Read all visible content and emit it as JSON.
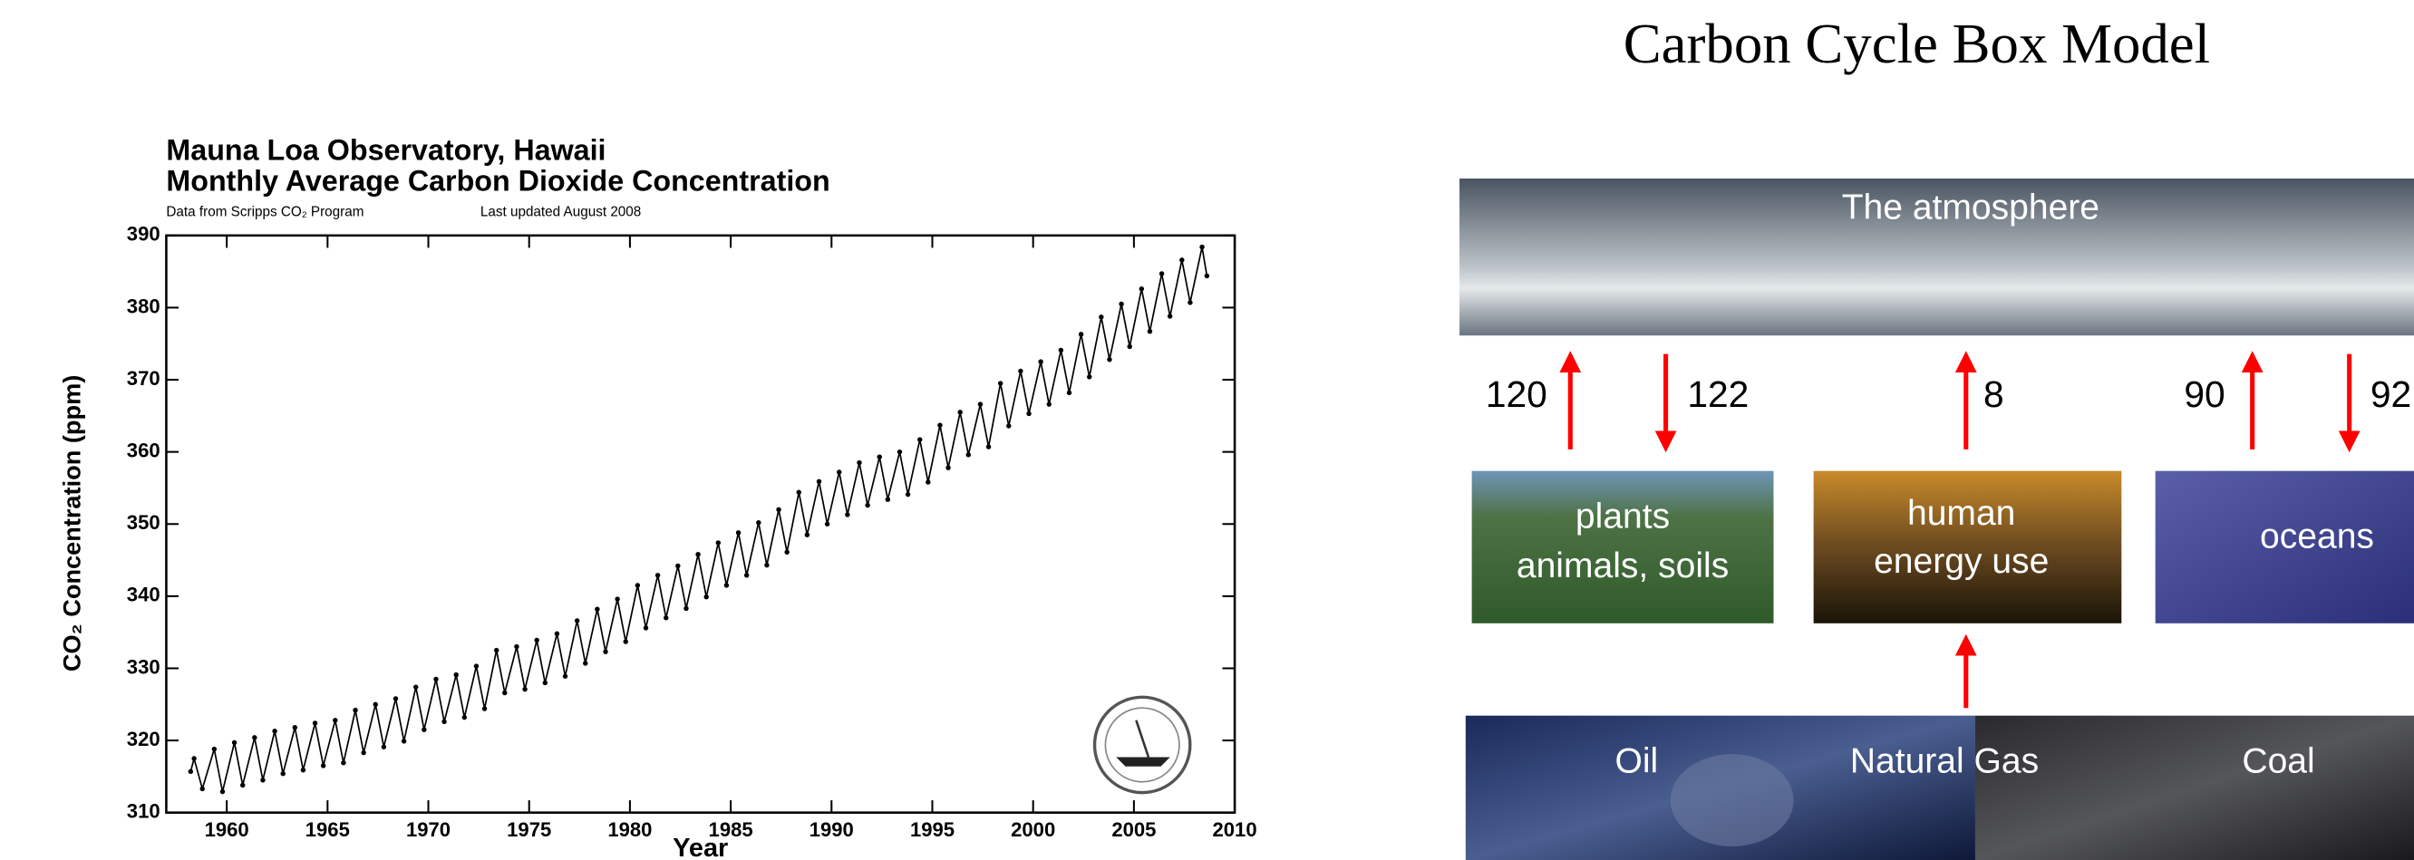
{
  "slide_title": "Carbon Cycle Box Model",
  "chart_data": {
    "type": "line",
    "title": "Mauna Loa Observatory, Hawaii",
    "subtitle": "Monthly Average Carbon Dioxide Concentration",
    "notes": [
      "Data from Scripps CO₂ Program",
      "Last updated August 2008"
    ],
    "x_label": "Year",
    "y_label": "CO₂ Concentration (ppm)",
    "xlim": [
      1957,
      2010
    ],
    "ylim": [
      310,
      390
    ],
    "xticks": [
      1960,
      1965,
      1970,
      1975,
      1980,
      1985,
      1990,
      1995,
      2000,
      2005,
      2010
    ],
    "yticks": [
      310,
      320,
      330,
      340,
      350,
      360,
      370,
      380,
      390
    ],
    "color": "#000000",
    "markers": true,
    "x": [
      1958.21,
      1958.38,
      1958.79,
      1959.38,
      1959.79,
      1960.38,
      1960.79,
      1961.38,
      1961.79,
      1962.38,
      1962.79,
      1963.38,
      1963.79,
      1964.38,
      1964.79,
      1965.38,
      1965.79,
      1966.38,
      1966.79,
      1967.38,
      1967.79,
      1968.38,
      1968.79,
      1969.38,
      1969.79,
      1970.38,
      1970.79,
      1971.38,
      1971.79,
      1972.38,
      1972.79,
      1973.38,
      1973.79,
      1974.38,
      1974.79,
      1975.38,
      1975.79,
      1976.38,
      1976.79,
      1977.38,
      1977.79,
      1978.38,
      1978.79,
      1979.38,
      1979.79,
      1980.38,
      1980.79,
      1981.38,
      1981.79,
      1982.38,
      1982.79,
      1983.38,
      1983.79,
      1984.38,
      1984.79,
      1985.38,
      1985.79,
      1986.38,
      1986.79,
      1987.38,
      1987.79,
      1988.38,
      1988.79,
      1989.38,
      1989.79,
      1990.38,
      1990.79,
      1991.38,
      1991.79,
      1992.38,
      1992.79,
      1993.38,
      1993.79,
      1994.38,
      1994.79,
      1995.38,
      1995.79,
      1996.38,
      1996.79,
      1997.38,
      1997.79,
      1998.38,
      1998.79,
      1999.38,
      1999.79,
      2000.38,
      2000.79,
      2001.38,
      2001.79,
      2002.38,
      2002.79,
      2003.38,
      2003.79,
      2004.38,
      2004.79,
      2005.38,
      2005.79,
      2006.38,
      2006.79,
      2007.38,
      2007.79,
      2008.38,
      2008.62
    ],
    "values": [
      315.7,
      317.5,
      313.3,
      318.8,
      312.9,
      319.7,
      313.8,
      320.4,
      314.5,
      321.3,
      315.4,
      321.8,
      315.9,
      322.4,
      316.5,
      322.8,
      316.9,
      324.2,
      318.3,
      325.0,
      319.1,
      325.8,
      319.9,
      327.4,
      321.5,
      328.5,
      322.6,
      329.1,
      323.2,
      330.3,
      324.4,
      332.5,
      326.6,
      333.0,
      327.1,
      333.9,
      328.0,
      334.8,
      328.9,
      336.6,
      330.7,
      338.2,
      332.3,
      339.6,
      333.7,
      341.5,
      335.6,
      342.9,
      337.0,
      344.2,
      338.3,
      345.8,
      339.9,
      347.4,
      341.5,
      348.8,
      342.9,
      350.2,
      344.3,
      352.0,
      346.1,
      354.4,
      348.5,
      355.9,
      350.0,
      357.2,
      351.3,
      358.5,
      352.6,
      359.3,
      353.4,
      360.0,
      354.1,
      361.7,
      355.8,
      363.7,
      357.8,
      365.5,
      359.6,
      366.6,
      360.7,
      369.5,
      363.6,
      371.2,
      365.3,
      372.5,
      366.6,
      374.1,
      368.2,
      376.3,
      370.4,
      378.7,
      372.8,
      380.5,
      374.6,
      382.6,
      376.7,
      384.7,
      378.8,
      386.6,
      380.7,
      388.4,
      384.4
    ]
  },
  "diagram": {
    "atmosphere": "The atmosphere",
    "fluxes": [
      120,
      122,
      8,
      90,
      92
    ],
    "reservoirs": [
      [
        "plants",
        "animals, soils"
      ],
      [
        "human",
        "energy use"
      ],
      [
        "oceans"
      ]
    ],
    "fossil": [
      "Oil",
      "Natural Gas",
      "Coal"
    ]
  }
}
